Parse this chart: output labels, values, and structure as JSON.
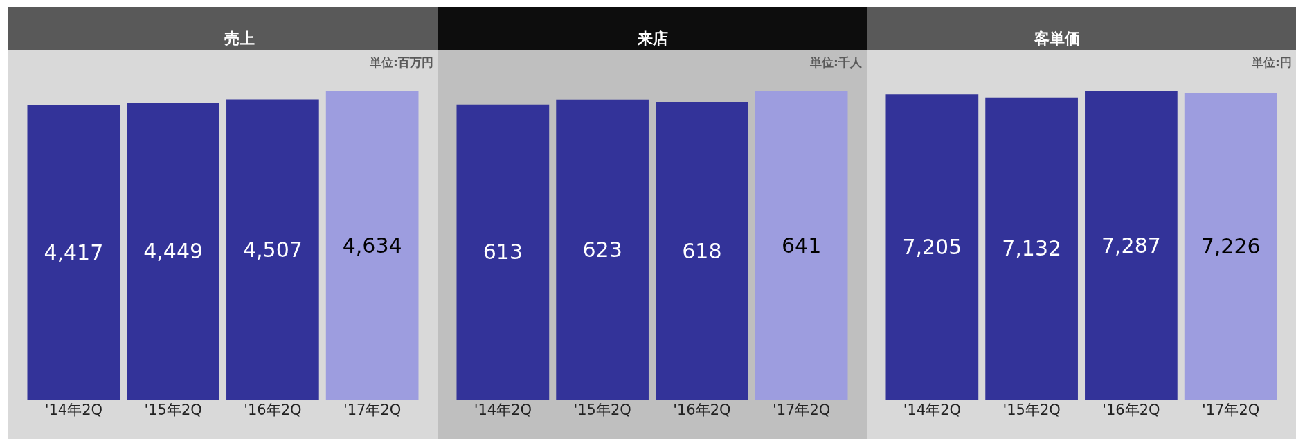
{
  "chart_data": [
    {
      "type": "bar",
      "title": "売上",
      "subtitle": "単位:百万円",
      "categories": [
        "'14年2Q",
        "'15年2Q",
        "'16年2Q",
        "'17年2Q"
      ],
      "values": [
        4417,
        4449,
        4507,
        4634
      ],
      "value_labels": [
        "4,417",
        "4,449",
        "4,507",
        "4,634"
      ],
      "colors": [
        "#333399",
        "#333399",
        "#333399",
        "#9d9ddf"
      ]
    },
    {
      "type": "bar",
      "title": "来店",
      "subtitle": "単位:千人",
      "categories": [
        "'14年2Q",
        "'15年2Q",
        "'16年2Q",
        "'17年2Q"
      ],
      "values": [
        613,
        623,
        618,
        641
      ],
      "colors": [
        "#333399",
        "#333399",
        "#333399",
        "#9d9ddf"
      ],
      "data_labels": true
    },
    {
      "type": "bar",
      "title": "客単価",
      "subtitle": "単位:円",
      "categories": [
        "'14年2Q",
        "'15年2Q",
        "'16年2Q",
        "'17年2Q"
      ],
      "values": [
        7205,
        7132,
        7287,
        7226
      ],
      "value_labels": [
        "7,205",
        "7,132",
        "7,287",
        "7,226"
      ],
      "colors": [
        "#333399",
        "#333399",
        "#333399",
        "#9d9ddf"
      ]
    }
  ]
}
